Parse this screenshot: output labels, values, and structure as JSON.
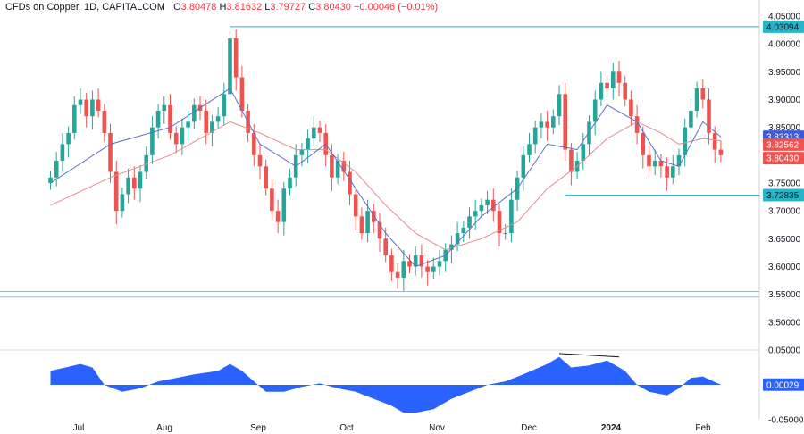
{
  "header": {
    "symbol": "CFDs on Copper, 1D, CAPITALCOM",
    "o_label": "O",
    "o_value": "3.80478",
    "h_label": "H",
    "h_value": "3.81632",
    "l_label": "L",
    "l_value": "3.79727",
    "c_label": "C",
    "c_value": "3.80430",
    "change": "−0.00046 (−0.01%)"
  },
  "colors": {
    "up": "#26a69a",
    "down": "#ef5350",
    "ma_fast": "#5b6fc7",
    "ma_slow": "#e38b8b",
    "level_line": "#26b5c9",
    "oscillator": "#2962ff",
    "grid": "#d1d4dc"
  },
  "chart_data": [
    {
      "type": "candlestick",
      "instrument": "CFDs on Copper",
      "timeframe": "1D",
      "ylim": [
        3.45,
        4.05
      ],
      "y_ticks": [
        "4.05000",
        "4.00000",
        "3.95000",
        "3.90000",
        "3.85000",
        "3.80000",
        "3.75000",
        "3.70000",
        "3.65000",
        "3.60000",
        "3.55000",
        "3.50000"
      ],
      "x_ticks": [
        "Jul",
        "Aug",
        "Sep",
        "Oct",
        "Nov",
        "Dec",
        "2024",
        "Feb"
      ],
      "price_badges": [
        {
          "value": "4.03094",
          "kind": "level"
        },
        {
          "value": "3.83313",
          "kind": "ma_fast"
        },
        {
          "value": "3.82562",
          "kind": "ma_slow"
        },
        {
          "value": "3.80430",
          "kind": "last"
        },
        {
          "value": "3.72835",
          "kind": "level"
        }
      ],
      "levels": [
        4.03094,
        3.72835,
        3.555,
        3.545
      ],
      "series": [
        {
          "name": "Close",
          "points": [
            [
              -10,
              3.76
            ],
            [
              -8,
              3.79
            ],
            [
              -6,
              3.82
            ],
            [
              -4,
              3.84
            ],
            [
              -2,
              3.89
            ],
            [
              0,
              3.9
            ],
            [
              2,
              3.87
            ],
            [
              4,
              3.9
            ],
            [
              6,
              3.88
            ],
            [
              8,
              3.84
            ],
            [
              10,
              3.77
            ],
            [
              12,
              3.7
            ],
            [
              14,
              3.73
            ],
            [
              16,
              3.76
            ],
            [
              18,
              3.74
            ],
            [
              20,
              3.77
            ],
            [
              22,
              3.8
            ],
            [
              24,
              3.85
            ],
            [
              26,
              3.88
            ],
            [
              28,
              3.89
            ],
            [
              30,
              3.84
            ],
            [
              32,
              3.82
            ],
            [
              34,
              3.85
            ],
            [
              36,
              3.86
            ],
            [
              38,
              3.89
            ],
            [
              40,
              3.88
            ],
            [
              42,
              3.84
            ],
            [
              44,
              3.86
            ],
            [
              46,
              3.87
            ],
            [
              48,
              3.91
            ],
            [
              50,
              4.01
            ],
            [
              52,
              3.94
            ],
            [
              54,
              3.88
            ],
            [
              56,
              3.84
            ],
            [
              58,
              3.8
            ],
            [
              60,
              3.78
            ],
            [
              62,
              3.74
            ],
            [
              64,
              3.7
            ],
            [
              66,
              3.68
            ],
            [
              68,
              3.74
            ],
            [
              70,
              3.76
            ],
            [
              72,
              3.8
            ],
            [
              74,
              3.81
            ],
            [
              76,
              3.83
            ],
            [
              78,
              3.85
            ],
            [
              80,
              3.84
            ],
            [
              82,
              3.8
            ],
            [
              84,
              3.76
            ],
            [
              86,
              3.79
            ],
            [
              88,
              3.77
            ],
            [
              90,
              3.73
            ],
            [
              92,
              3.69
            ],
            [
              94,
              3.66
            ],
            [
              96,
              3.7
            ],
            [
              98,
              3.68
            ],
            [
              100,
              3.65
            ],
            [
              102,
              3.62
            ],
            [
              104,
              3.59
            ],
            [
              106,
              3.58
            ],
            [
              108,
              3.61
            ],
            [
              110,
              3.6
            ],
            [
              112,
              3.62
            ],
            [
              114,
              3.6
            ],
            [
              116,
              3.59
            ],
            [
              118,
              3.6
            ],
            [
              120,
              3.61
            ],
            [
              122,
              3.63
            ],
            [
              124,
              3.64
            ],
            [
              126,
              3.66
            ],
            [
              128,
              3.67
            ],
            [
              130,
              3.69
            ],
            [
              132,
              3.7
            ],
            [
              134,
              3.71
            ],
            [
              136,
              3.72
            ],
            [
              138,
              3.7
            ],
            [
              140,
              3.66
            ],
            [
              142,
              3.66
            ],
            [
              144,
              3.72
            ],
            [
              146,
              3.76
            ],
            [
              148,
              3.8
            ],
            [
              150,
              3.82
            ],
            [
              152,
              3.85
            ],
            [
              154,
              3.86
            ],
            [
              156,
              3.85
            ],
            [
              158,
              3.87
            ],
            [
              160,
              3.91
            ],
            [
              162,
              3.81
            ],
            [
              164,
              3.77
            ],
            [
              166,
              3.79
            ],
            [
              168,
              3.82
            ],
            [
              170,
              3.86
            ],
            [
              172,
              3.9
            ],
            [
              174,
              3.93
            ],
            [
              176,
              3.92
            ],
            [
              178,
              3.95
            ],
            [
              180,
              3.93
            ],
            [
              182,
              3.9
            ],
            [
              184,
              3.87
            ],
            [
              186,
              3.84
            ],
            [
              188,
              3.8
            ],
            [
              190,
              3.78
            ],
            [
              192,
              3.79
            ],
            [
              194,
              3.78
            ],
            [
              196,
              3.76
            ],
            [
              198,
              3.78
            ],
            [
              200,
              3.8
            ],
            [
              202,
              3.85
            ],
            [
              204,
              3.88
            ],
            [
              206,
              3.92
            ],
            [
              208,
              3.9
            ],
            [
              210,
              3.84
            ],
            [
              212,
              3.81
            ],
            [
              214,
              3.8
            ]
          ]
        },
        {
          "name": "MA fast",
          "points": [
            [
              -10,
              3.75
            ],
            [
              10,
              3.82
            ],
            [
              30,
              3.85
            ],
            [
              50,
              3.92
            ],
            [
              60,
              3.82
            ],
            [
              72,
              3.78
            ],
            [
              82,
              3.82
            ],
            [
              92,
              3.74
            ],
            [
              102,
              3.66
            ],
            [
              112,
              3.6
            ],
            [
              122,
              3.62
            ],
            [
              134,
              3.69
            ],
            [
              146,
              3.74
            ],
            [
              156,
              3.82
            ],
            [
              166,
              3.81
            ],
            [
              176,
              3.89
            ],
            [
              186,
              3.86
            ],
            [
              194,
              3.79
            ],
            [
              200,
              3.78
            ],
            [
              208,
              3.86
            ],
            [
              214,
              3.833
            ]
          ]
        },
        {
          "name": "MA slow",
          "points": [
            [
              -10,
              3.71
            ],
            [
              10,
              3.76
            ],
            [
              30,
              3.8
            ],
            [
              50,
              3.86
            ],
            [
              60,
              3.84
            ],
            [
              72,
              3.81
            ],
            [
              82,
              3.81
            ],
            [
              92,
              3.77
            ],
            [
              102,
              3.71
            ],
            [
              112,
              3.66
            ],
            [
              122,
              3.63
            ],
            [
              134,
              3.65
            ],
            [
              146,
              3.68
            ],
            [
              156,
              3.74
            ],
            [
              166,
              3.78
            ],
            [
              176,
              3.83
            ],
            [
              186,
              3.86
            ],
            [
              194,
              3.84
            ],
            [
              200,
              3.82
            ],
            [
              208,
              3.83
            ],
            [
              214,
              3.826
            ]
          ]
        }
      ]
    },
    {
      "type": "area",
      "name": "Oscillator",
      "ylim": [
        -0.05,
        0.05
      ],
      "y_ticks": [
        "0.05000",
        "-0.05000"
      ],
      "badge": "0.00029",
      "points": [
        [
          -10,
          0.02
        ],
        [
          0,
          0.03
        ],
        [
          4,
          0.025
        ],
        [
          8,
          0.0
        ],
        [
          14,
          -0.01
        ],
        [
          20,
          -0.005
        ],
        [
          26,
          0.005
        ],
        [
          32,
          0.01
        ],
        [
          38,
          0.015
        ],
        [
          46,
          0.02
        ],
        [
          50,
          0.03
        ],
        [
          54,
          0.02
        ],
        [
          58,
          0.005
        ],
        [
          62,
          -0.01
        ],
        [
          68,
          -0.01
        ],
        [
          74,
          -0.003
        ],
        [
          80,
          0.002
        ],
        [
          86,
          -0.005
        ],
        [
          92,
          -0.01
        ],
        [
          98,
          -0.02
        ],
        [
          104,
          -0.03
        ],
        [
          108,
          -0.04
        ],
        [
          112,
          -0.04
        ],
        [
          118,
          -0.035
        ],
        [
          124,
          -0.02
        ],
        [
          130,
          -0.01
        ],
        [
          136,
          0.0
        ],
        [
          142,
          0.005
        ],
        [
          148,
          0.015
        ],
        [
          156,
          0.03
        ],
        [
          160,
          0.04
        ],
        [
          164,
          0.025
        ],
        [
          170,
          0.028
        ],
        [
          176,
          0.035
        ],
        [
          182,
          0.02
        ],
        [
          186,
          0.0
        ],
        [
          190,
          -0.01
        ],
        [
          196,
          -0.015
        ],
        [
          200,
          -0.005
        ],
        [
          204,
          0.01
        ],
        [
          208,
          0.012
        ],
        [
          212,
          0.004
        ],
        [
          214,
          0.0003
        ]
      ],
      "annotation_line": [
        [
          160,
          0.045
        ],
        [
          180,
          0.04
        ]
      ]
    }
  ]
}
